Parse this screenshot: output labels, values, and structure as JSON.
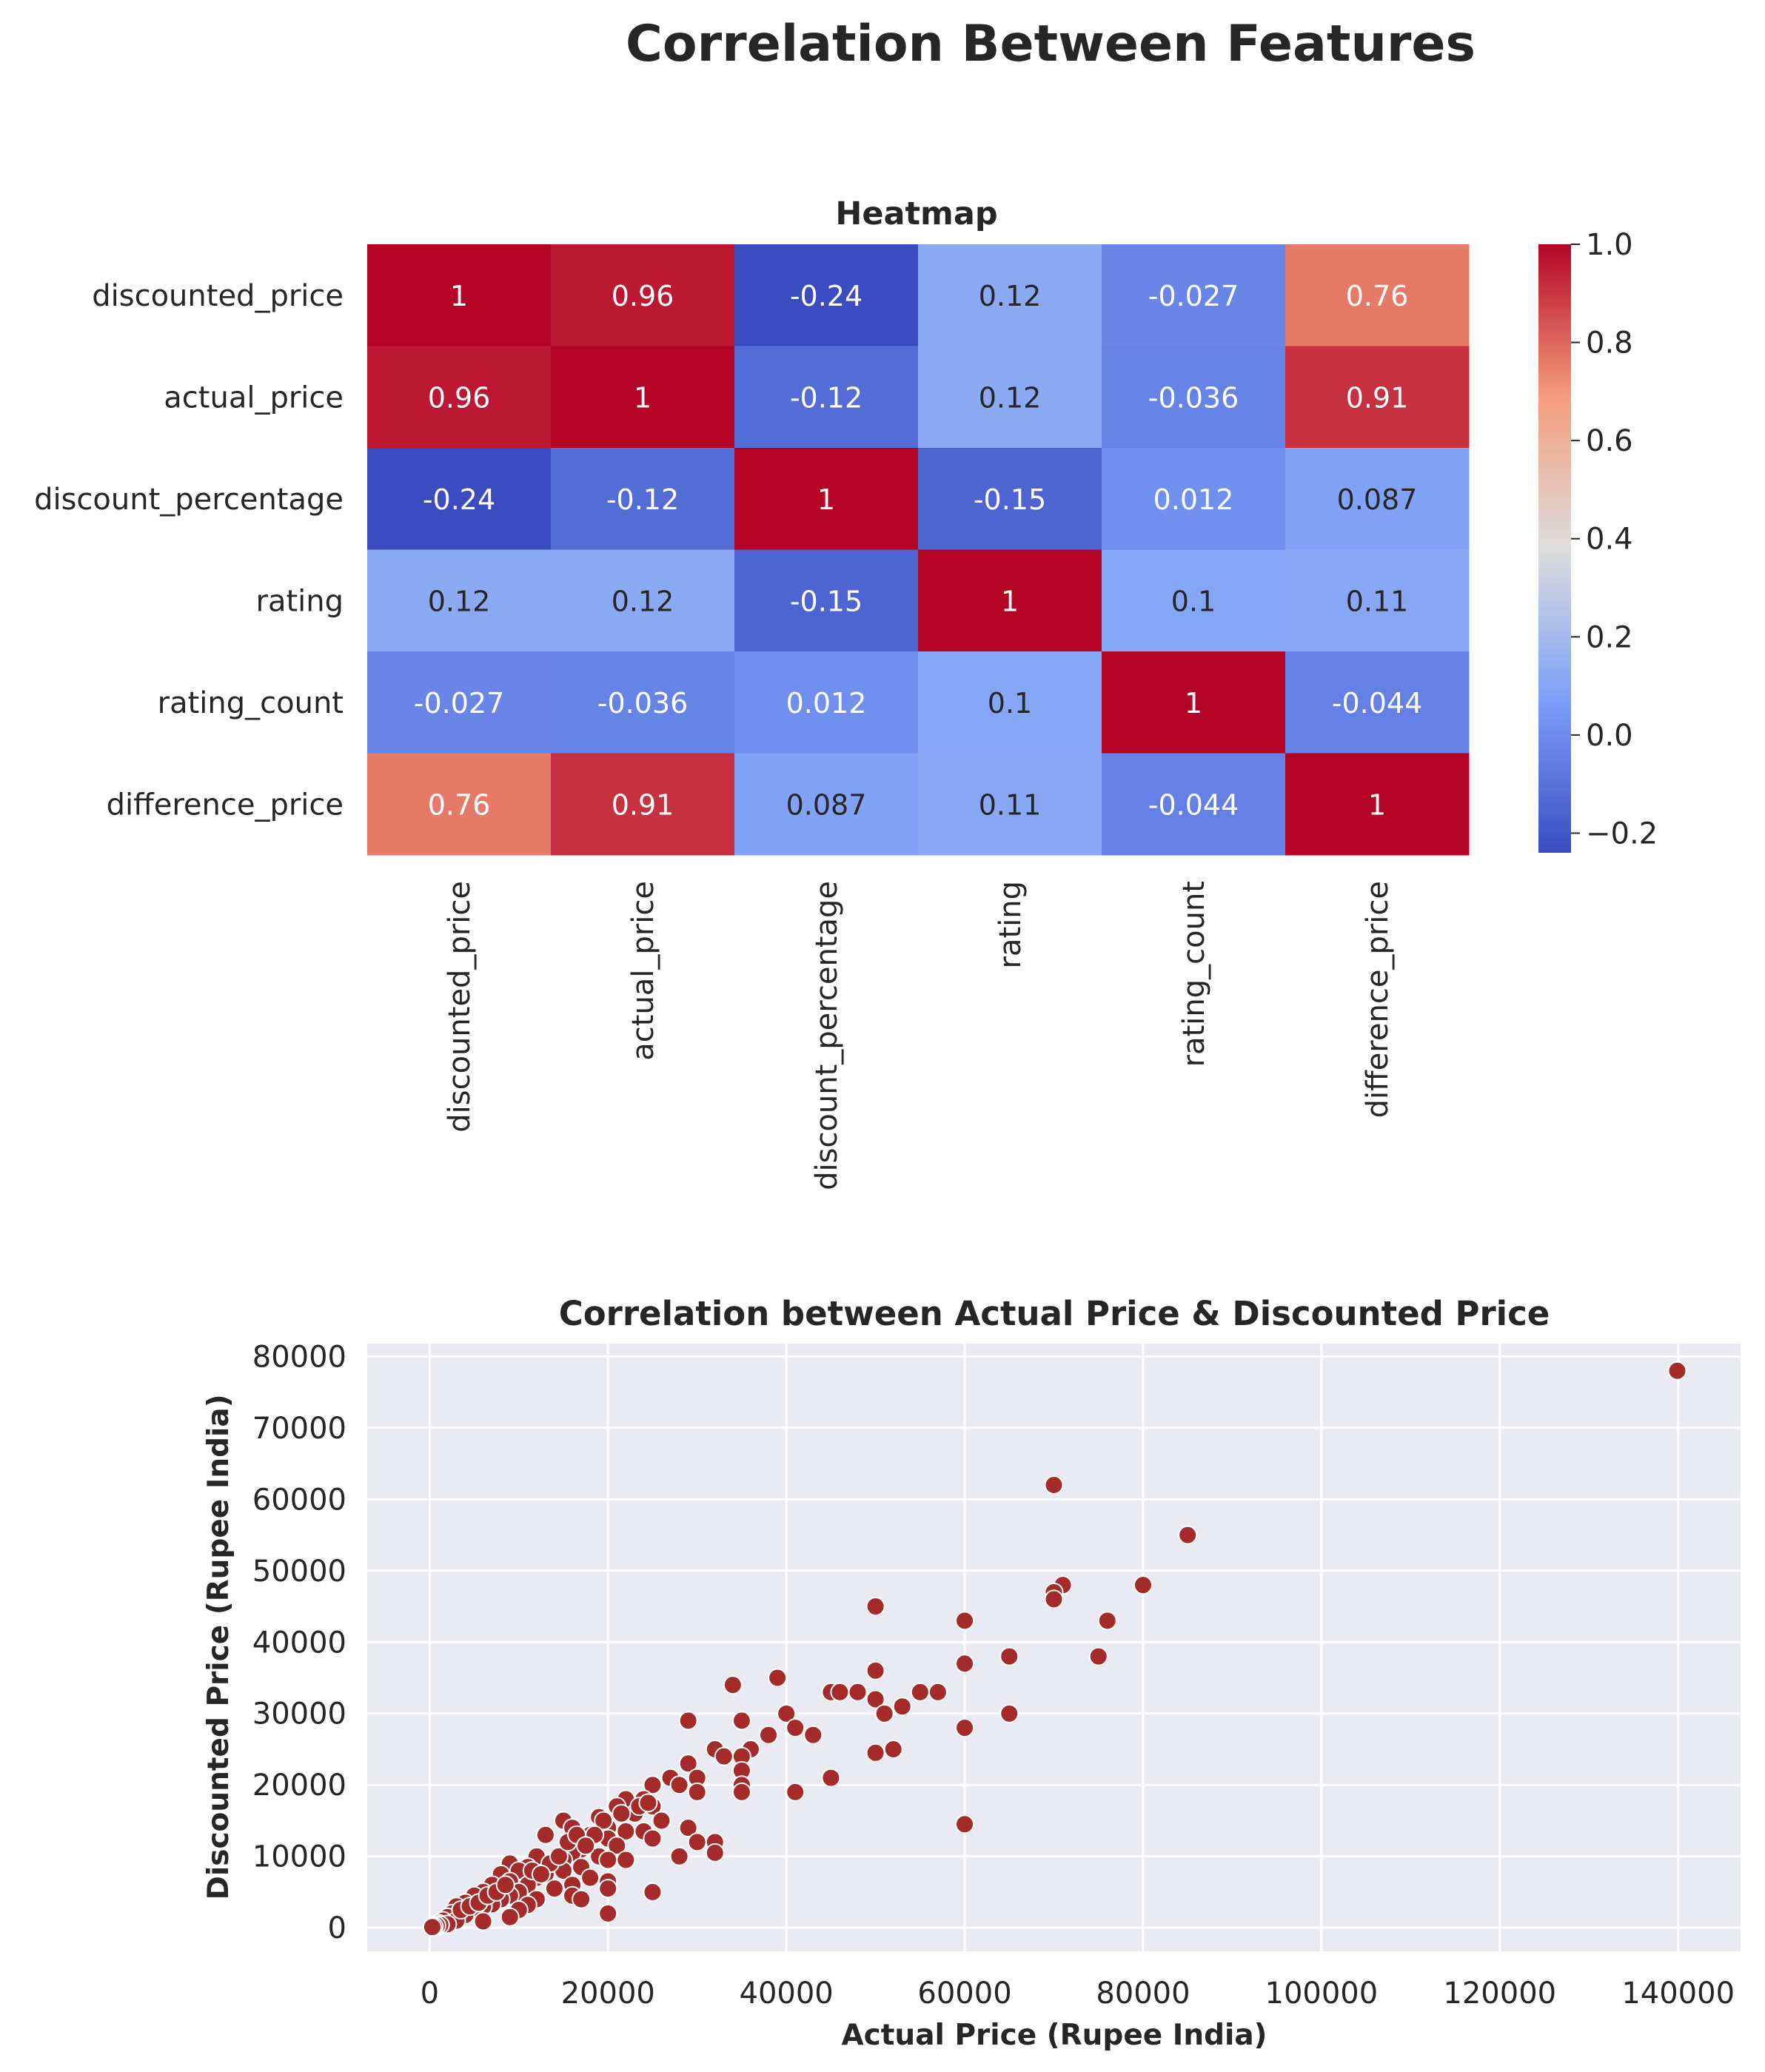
{
  "figure": {
    "suptitle": "Correlation Between Features"
  },
  "chart_data": [
    {
      "type": "heatmap",
      "title": "Heatmap",
      "row_labels": [
        "discounted_price",
        "actual_price",
        "discount_percentage",
        "rating",
        "rating_count",
        "difference_price"
      ],
      "col_labels": [
        "discounted_price",
        "actual_price",
        "discount_percentage",
        "rating",
        "rating_count",
        "difference_price"
      ],
      "values": [
        [
          1,
          0.96,
          -0.24,
          0.12,
          -0.027,
          0.76
        ],
        [
          0.96,
          1,
          -0.12,
          0.12,
          -0.036,
          0.91
        ],
        [
          -0.24,
          -0.12,
          1,
          -0.15,
          0.012,
          0.087
        ],
        [
          0.12,
          0.12,
          -0.15,
          1,
          0.1,
          0.11
        ],
        [
          -0.027,
          -0.036,
          0.012,
          0.1,
          1,
          -0.044
        ],
        [
          0.76,
          0.91,
          0.087,
          0.11,
          -0.044,
          1
        ]
      ],
      "cell_labels": [
        [
          "1",
          "0.96",
          "-0.24",
          "0.12",
          "-0.027",
          "0.76"
        ],
        [
          "0.96",
          "1",
          "-0.12",
          "0.12",
          "-0.036",
          "0.91"
        ],
        [
          "-0.24",
          "-0.12",
          "1",
          "-0.15",
          "0.012",
          "0.087"
        ],
        [
          "0.12",
          "0.12",
          "-0.15",
          "1",
          "0.1",
          "0.11"
        ],
        [
          "-0.027",
          "-0.036",
          "0.012",
          "0.1",
          "1",
          "-0.044"
        ],
        [
          "0.76",
          "0.91",
          "0.087",
          "0.11",
          "-0.044",
          "1"
        ]
      ],
      "colormap": "coolwarm",
      "colorbar": {
        "range": [
          -0.24,
          1.0
        ],
        "ticks": [
          1.0,
          0.8,
          0.6,
          0.4,
          0.2,
          0.0,
          -0.2
        ],
        "tick_labels": [
          "1.0",
          "0.8",
          "0.6",
          "0.4",
          "0.2",
          "0.0",
          "−0.2"
        ]
      }
    },
    {
      "type": "scatter",
      "title": "Correlation between Actual Price & Discounted Price",
      "xlabel": "Actual Price (Rupee India)",
      "ylabel": "Discounted Price (Rupee India)",
      "xlim": [
        -7000,
        147000
      ],
      "ylim": [
        -3300,
        81800
      ],
      "xticks": [
        0,
        20000,
        40000,
        60000,
        80000,
        100000,
        120000,
        140000
      ],
      "yticks": [
        0,
        10000,
        20000,
        30000,
        40000,
        50000,
        60000,
        70000,
        80000
      ],
      "grid": true,
      "point_color": "#a52a2a",
      "points": [
        [
          139900,
          77990
        ],
        [
          70000,
          61999
        ],
        [
          85000,
          54990
        ],
        [
          80000,
          47990
        ],
        [
          71000,
          47990
        ],
        [
          70000,
          46990
        ],
        [
          70000,
          45999
        ],
        [
          76000,
          42999
        ],
        [
          60000,
          42999
        ],
        [
          50000,
          44999
        ],
        [
          65000,
          37999
        ],
        [
          75000,
          37999
        ],
        [
          60000,
          36999
        ],
        [
          50000,
          35999
        ],
        [
          39000,
          34999
        ],
        [
          34000,
          33999
        ],
        [
          45000,
          32999
        ],
        [
          46000,
          32999
        ],
        [
          48000,
          32999
        ],
        [
          55000,
          32999
        ],
        [
          57000,
          32999
        ],
        [
          50000,
          31999
        ],
        [
          53000,
          30990
        ],
        [
          51000,
          29990
        ],
        [
          40000,
          29990
        ],
        [
          65000,
          29990
        ],
        [
          29000,
          28999
        ],
        [
          35000,
          28999
        ],
        [
          41000,
          27999
        ],
        [
          60000,
          27999
        ],
        [
          43000,
          26999
        ],
        [
          38000,
          26999
        ],
        [
          32000,
          24999
        ],
        [
          36000,
          24999
        ],
        [
          50000,
          24499
        ],
        [
          52000,
          24999
        ],
        [
          33000,
          23999
        ],
        [
          35000,
          23999
        ],
        [
          29000,
          22999
        ],
        [
          35000,
          21999
        ],
        [
          30000,
          20999
        ],
        [
          27000,
          20999
        ],
        [
          45000,
          20999
        ],
        [
          35000,
          19999
        ],
        [
          25000,
          19999
        ],
        [
          28000,
          19999
        ],
        [
          30000,
          18999
        ],
        [
          41000,
          18999
        ],
        [
          35000,
          18999
        ],
        [
          24000,
          17999
        ],
        [
          22000,
          17999
        ],
        [
          21000,
          16999
        ],
        [
          25000,
          16999
        ],
        [
          23000,
          15999
        ],
        [
          19000,
          15499
        ],
        [
          15000,
          14999
        ],
        [
          26000,
          14999
        ],
        [
          60000,
          14499
        ],
        [
          16000,
          13999
        ],
        [
          29000,
          13999
        ],
        [
          20000,
          13999
        ],
        [
          22000,
          13499
        ],
        [
          24000,
          13499
        ],
        [
          18000,
          12999
        ],
        [
          13000,
          12999
        ],
        [
          20000,
          12499
        ],
        [
          25000,
          12499
        ],
        [
          32000,
          11999
        ],
        [
          30000,
          11999
        ],
        [
          21000,
          11499
        ],
        [
          17000,
          10999
        ],
        [
          16000,
          10499
        ],
        [
          32000,
          10499
        ],
        [
          28000,
          9999
        ],
        [
          12000,
          9999
        ],
        [
          19000,
          9999
        ],
        [
          15000,
          9499
        ],
        [
          20000,
          9499
        ],
        [
          22000,
          9499
        ],
        [
          9000,
          8999
        ],
        [
          14000,
          8999
        ],
        [
          11000,
          8499
        ],
        [
          17000,
          8499
        ],
        [
          10000,
          7999
        ],
        [
          15000,
          7999
        ],
        [
          13000,
          7499
        ],
        [
          8000,
          7499
        ],
        [
          18000,
          6999
        ],
        [
          12000,
          6999
        ],
        [
          20000,
          6499
        ],
        [
          9000,
          6499
        ],
        [
          16000,
          5999
        ],
        [
          11000,
          5999
        ],
        [
          7000,
          5999
        ],
        [
          20000,
          5499
        ],
        [
          14000,
          5499
        ],
        [
          10000,
          4999
        ],
        [
          6000,
          4999
        ],
        [
          25000,
          4999
        ],
        [
          16000,
          4499
        ],
        [
          9000,
          4499
        ],
        [
          5000,
          4499
        ],
        [
          17000,
          3999
        ],
        [
          12000,
          3999
        ],
        [
          8000,
          3999
        ],
        [
          4000,
          3499
        ],
        [
          7000,
          3299
        ],
        [
          11000,
          3199
        ],
        [
          3000,
          2999
        ],
        [
          6000,
          2999
        ],
        [
          10000,
          2499
        ],
        [
          5000,
          2499
        ],
        [
          2500,
          1999
        ],
        [
          20000,
          1999
        ],
        [
          4000,
          1799
        ],
        [
          9000,
          1499
        ],
        [
          2000,
          1499
        ],
        [
          1500,
          999
        ],
        [
          3000,
          999
        ],
        [
          6000,
          899
        ],
        [
          1000,
          599
        ],
        [
          2000,
          499
        ],
        [
          1200,
          399
        ],
        [
          800,
          299
        ],
        [
          500,
          199
        ],
        [
          300,
          99
        ],
        [
          3500,
          2499
        ],
        [
          4500,
          2999
        ],
        [
          5500,
          3499
        ],
        [
          6500,
          4499
        ],
        [
          7500,
          4999
        ],
        [
          8500,
          5999
        ],
        [
          13500,
          8999
        ],
        [
          14500,
          9999
        ],
        [
          11500,
          7999
        ],
        [
          12500,
          7499
        ],
        [
          15500,
          11999
        ],
        [
          16500,
          12999
        ],
        [
          19500,
          14999
        ],
        [
          21500,
          15999
        ],
        [
          23500,
          16999
        ],
        [
          24500,
          17499
        ],
        [
          18500,
          12999
        ],
        [
          17500,
          11499
        ]
      ]
    }
  ]
}
